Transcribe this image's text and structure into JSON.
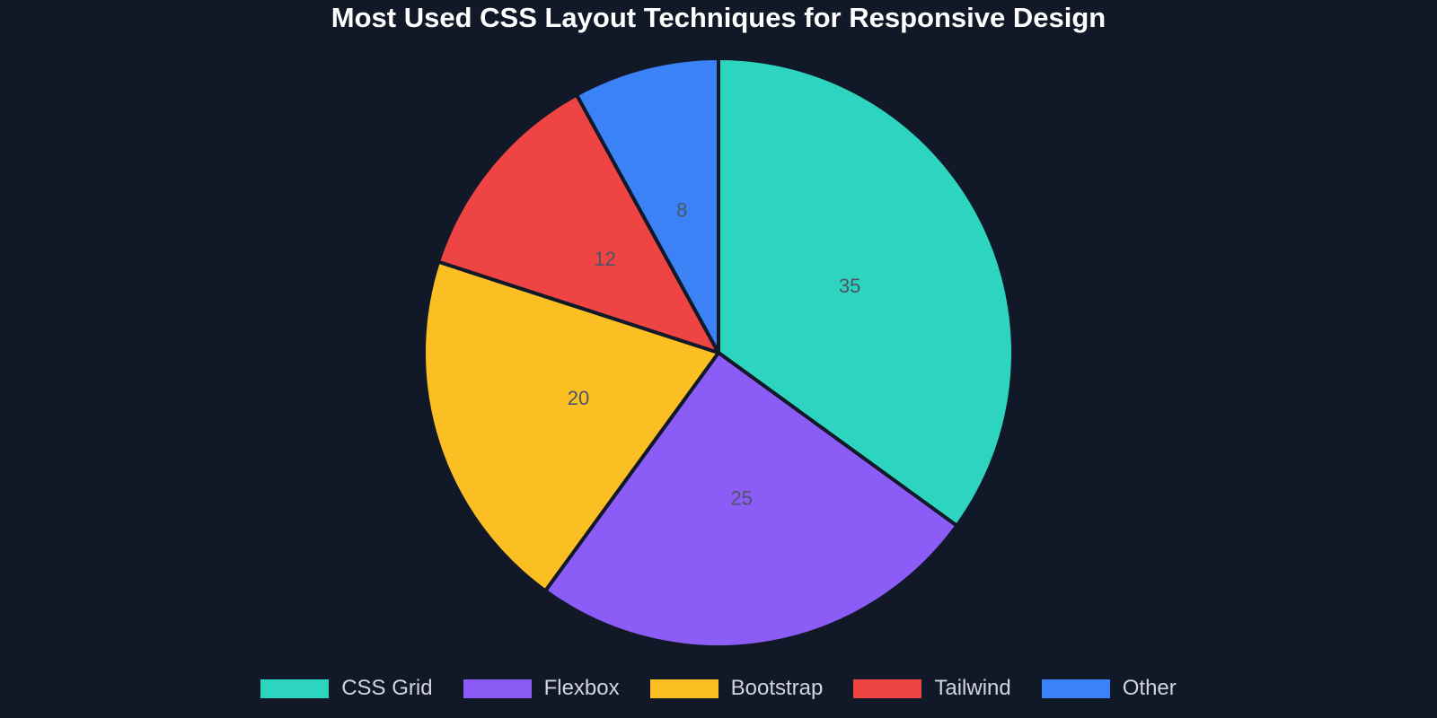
{
  "chart_data": {
    "type": "pie",
    "title": "Most Used CSS Layout Techniques for Responsive Design",
    "categories": [
      "CSS Grid",
      "Flexbox",
      "Bootstrap",
      "Tailwind",
      "Other"
    ],
    "values": [
      35,
      25,
      20,
      12,
      8
    ],
    "data_labels": [
      "35",
      "25",
      "20",
      "12",
      "8"
    ],
    "colors": [
      "#2dd4bf",
      "#8b5cf6",
      "#fbbf24",
      "#ef4444",
      "#3b82f6"
    ],
    "start_angle": "top (12 o'clock)",
    "direction": "clockwise",
    "legend_position": "bottom"
  }
}
